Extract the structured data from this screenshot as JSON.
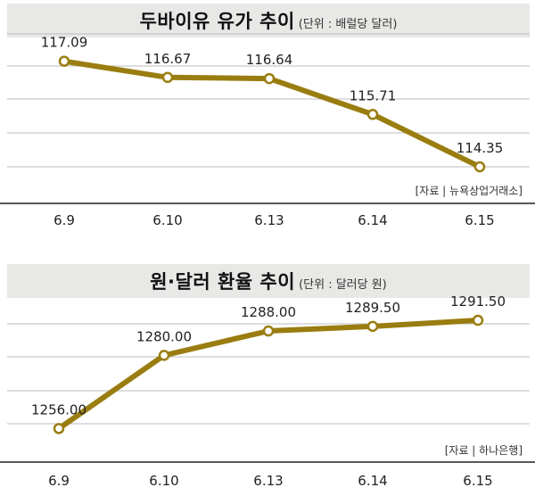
{
  "charts": [
    {
      "title": "두바이유 유가 추이",
      "unit": "(단위 : 배럴당 달러)",
      "source": "[자료 | 뉴욕상업거래소]"
    },
    {
      "title": "원·달러 환율 추이",
      "unit": "(단위 : 달러당 원)",
      "source": "[자료 | 하나은행]"
    }
  ],
  "colors": {
    "line": "#9a7d10",
    "grid": "#bdbdbd",
    "title_bg": "#e8e8e6"
  },
  "chart_data": [
    {
      "type": "line",
      "title": "두바이유 유가 추이",
      "unit": "(단위 : 배럴당 달러)",
      "categories": [
        "6.9",
        "6.10",
        "6.13",
        "6.14",
        "6.15"
      ],
      "labels": [
        "117.09",
        "116.67",
        "116.64",
        "115.71",
        "114.35"
      ],
      "values": [
        117.09,
        116.67,
        116.64,
        115.71,
        114.35
      ],
      "ylim": [
        113.4,
        117.8
      ],
      "grid": true
    },
    {
      "type": "line",
      "title": "원·달러 환율 추이",
      "unit": "(단위 : 달러당 원)",
      "categories": [
        "6.9",
        "6.10",
        "6.13",
        "6.14",
        "6.15"
      ],
      "labels": [
        "1256.00",
        "1280.00",
        "1288.00",
        "1289.50",
        "1291.50"
      ],
      "values": [
        1256.0,
        1280.0,
        1288.0,
        1289.5,
        1291.5
      ],
      "ylim": [
        1245,
        1300
      ],
      "grid": true
    }
  ]
}
